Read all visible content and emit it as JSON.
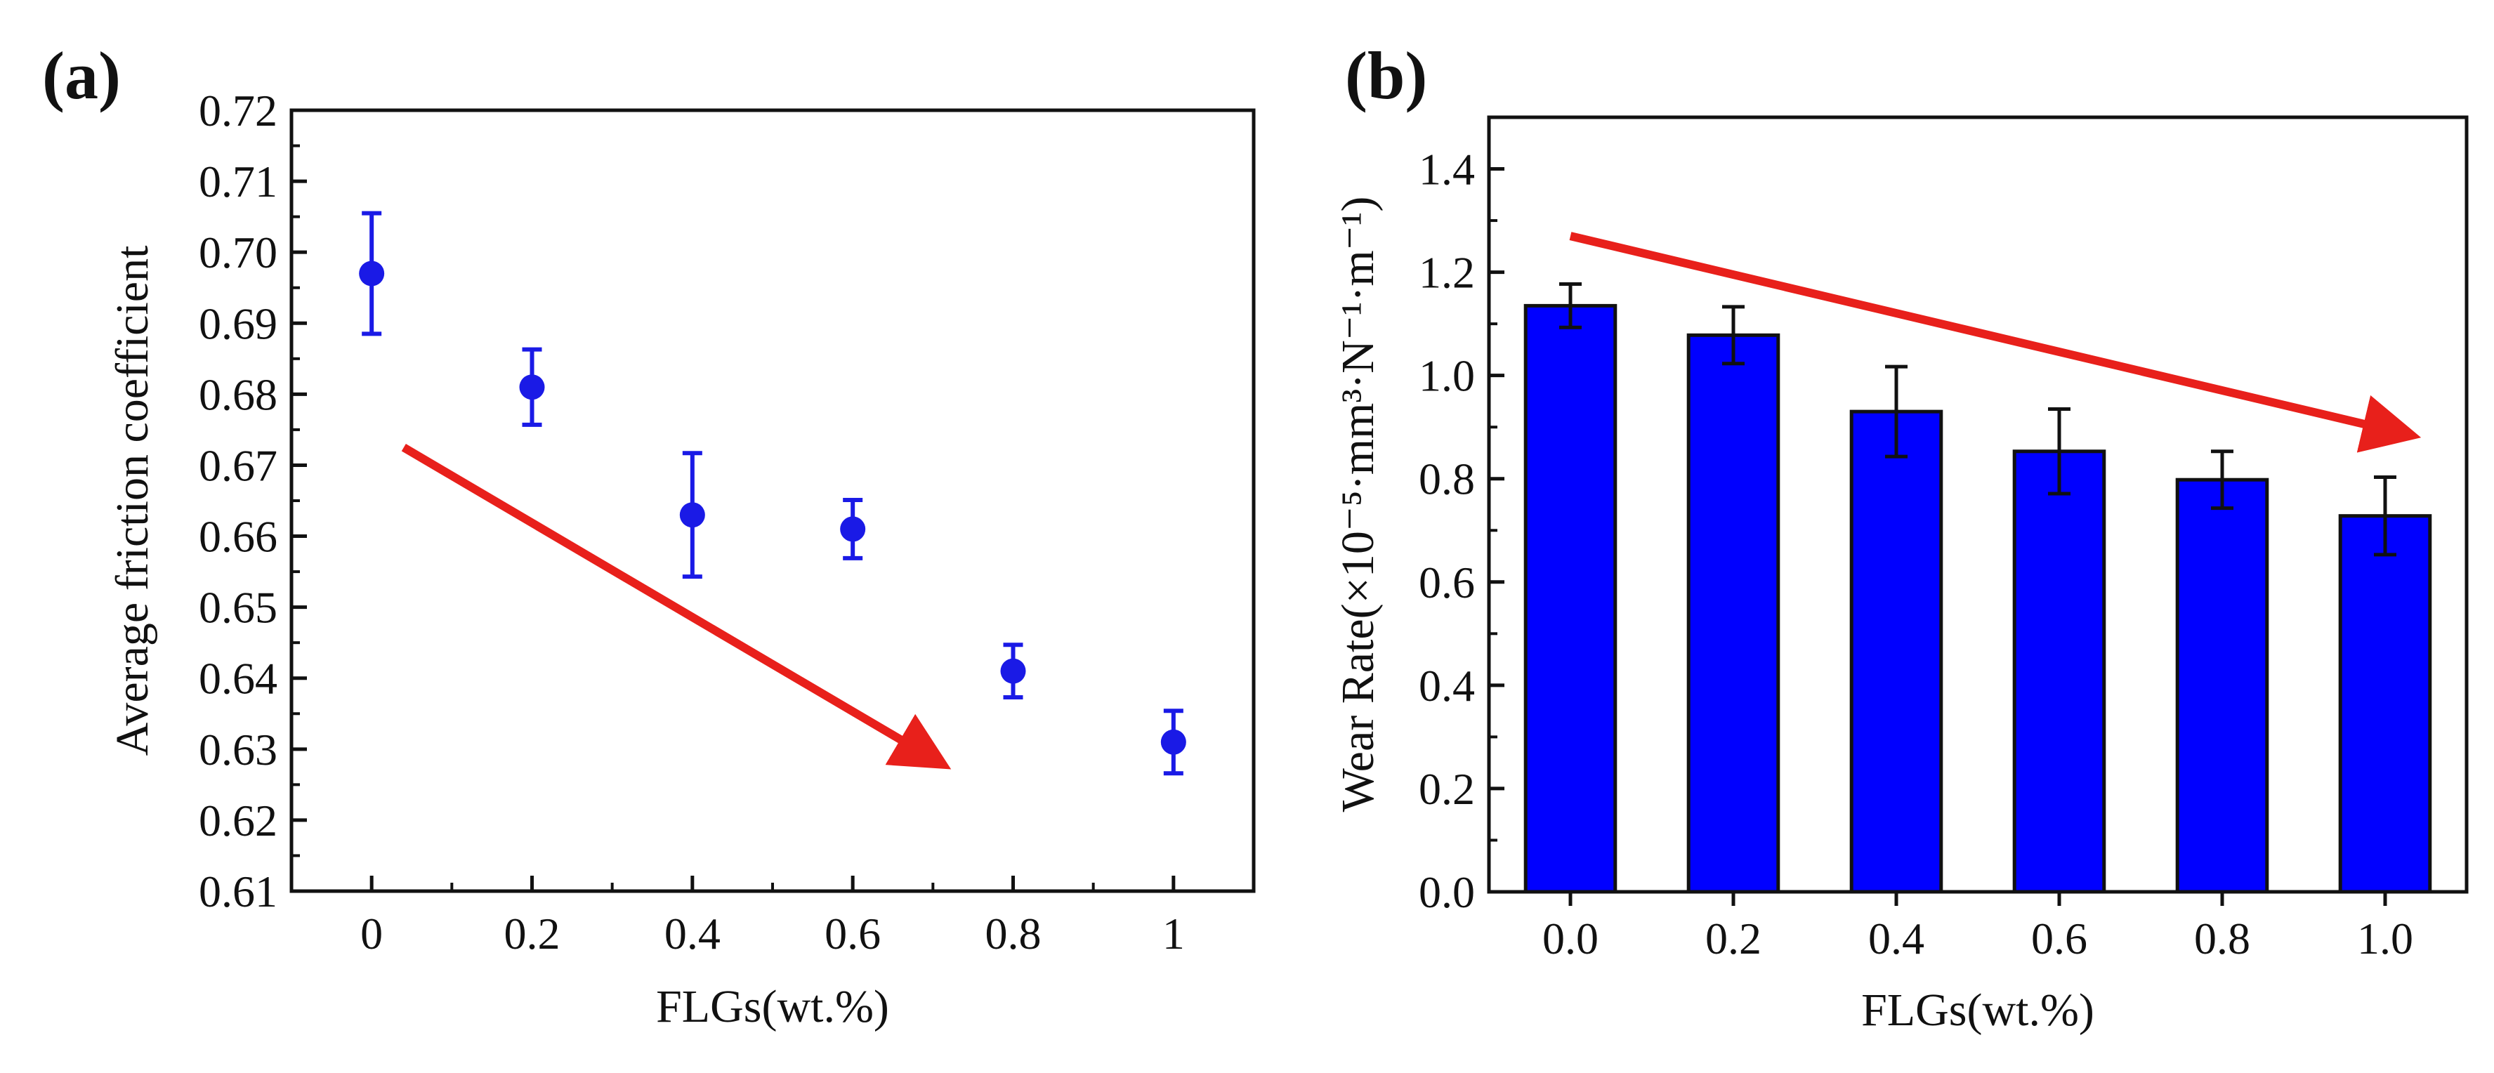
{
  "chart_data": [
    {
      "panel_label": "(a)",
      "type": "scatter",
      "xlabel": "FLGs(wt.%)",
      "ylabel": "Average friction coefficient",
      "xlim": [
        -0.1,
        1.1
      ],
      "ylim": [
        0.61,
        0.72
      ],
      "x_ticks": [
        "0",
        "0.2",
        "0.4",
        "0.6",
        "0.8",
        "1"
      ],
      "x_tick_values": [
        0,
        0.2,
        0.4,
        0.6,
        0.8,
        1.0
      ],
      "y_ticks": [
        "0.61",
        "0.62",
        "0.63",
        "0.64",
        "0.65",
        "0.66",
        "0.67",
        "0.68",
        "0.69",
        "0.70",
        "0.71",
        "0.72"
      ],
      "y_tick_values": [
        0.61,
        0.62,
        0.63,
        0.64,
        0.65,
        0.66,
        0.67,
        0.68,
        0.69,
        0.7,
        0.71,
        0.72
      ],
      "series": [
        {
          "x": [
            0,
            0.2,
            0.4,
            0.6,
            0.8,
            1.0
          ],
          "y": [
            0.697,
            0.681,
            0.663,
            0.661,
            0.641,
            0.631
          ],
          "error": [
            0.0085,
            0.0053,
            0.0087,
            0.0041,
            0.0037,
            0.0044
          ],
          "color": "#1a1ae6"
        }
      ],
      "arrow": {
        "from": [
          0.04,
          0.6725
        ],
        "to": [
          0.71,
          0.628
        ],
        "color": "#e8201b"
      }
    },
    {
      "panel_label": "(b)",
      "type": "bar",
      "xlabel": "FLGs(wt.%)",
      "ylabel": "Wear Rate(×10⁻⁵·mm³·N⁻¹·m⁻¹)",
      "categories": [
        "0.0",
        "0.2",
        "0.4",
        "0.6",
        "0.8",
        "1.0"
      ],
      "ylim": [
        0,
        1.5
      ],
      "y_ticks": [
        "0.0",
        "0.2",
        "0.4",
        "0.6",
        "0.8",
        "1.0",
        "1.2",
        "1.4"
      ],
      "y_tick_values": [
        0,
        0.2,
        0.4,
        0.6,
        0.8,
        1.0,
        1.2,
        1.4
      ],
      "series": [
        {
          "values": [
            1.135,
            1.078,
            0.93,
            0.853,
            0.798,
            0.728
          ],
          "error": [
            0.042,
            0.055,
            0.087,
            0.082,
            0.055,
            0.075
          ],
          "color": "#0000ff"
        }
      ],
      "arrow": {
        "from": [
          0.0,
          1.27
        ],
        "to": [
          5.15,
          0.885
        ],
        "color": "#e8201b"
      }
    }
  ]
}
